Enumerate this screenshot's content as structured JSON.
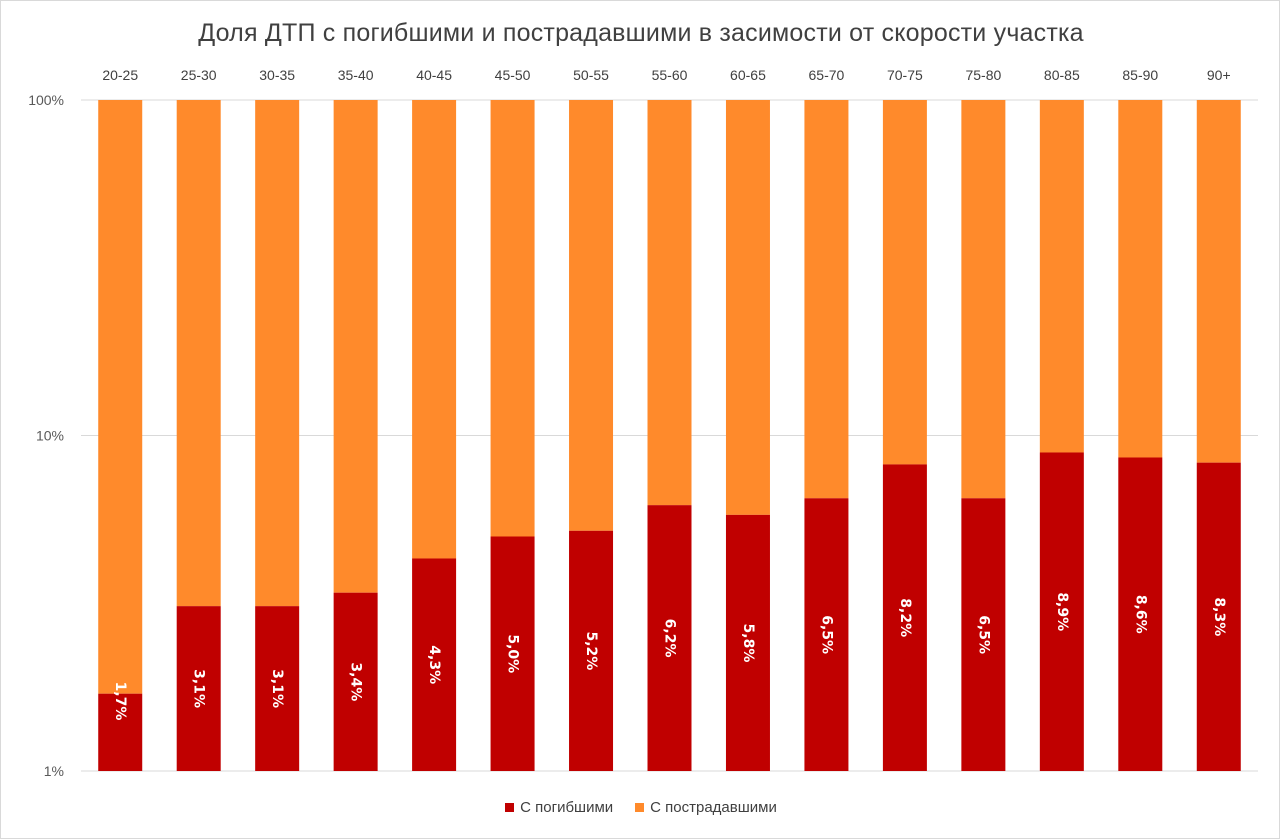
{
  "chart_data": {
    "type": "bar",
    "stacked": true,
    "percent_stacked": true,
    "title": "Доля ДТП с погибшими и пострадавшими в засимости от скорости участка",
    "xlabel": "",
    "ylabel": "",
    "y_scale": "log",
    "ylim": [
      1,
      100
    ],
    "y_ticks": [
      "1%",
      "10%",
      "100%"
    ],
    "categories": [
      "20-25",
      "25-30",
      "30-35",
      "35-40",
      "40-45",
      "45-50",
      "50-55",
      "55-60",
      "60-65",
      "65-70",
      "70-75",
      "75-80",
      "80-85",
      "85-90",
      "90+"
    ],
    "series": [
      {
        "name": "С погибшими",
        "color": "#c00000",
        "values": [
          1.7,
          3.1,
          3.1,
          3.4,
          4.3,
          5.0,
          5.2,
          6.2,
          5.8,
          6.5,
          8.2,
          6.5,
          8.9,
          8.6,
          8.3
        ],
        "data_labels": [
          "1,7%",
          "3,1%",
          "3,1%",
          "3,4%",
          "4,3%",
          "5,0%",
          "5,2%",
          "6,2%",
          "5,8%",
          "6,5%",
          "8,2%",
          "6,5%",
          "8,9%",
          "8,6%",
          "8,3%"
        ]
      },
      {
        "name": "С пострадавшими",
        "color": "#ff8a2b",
        "values": [
          98.3,
          96.9,
          96.9,
          96.6,
          95.7,
          95.0,
          94.8,
          93.8,
          94.2,
          93.5,
          91.8,
          93.5,
          91.1,
          91.4,
          91.7
        ]
      }
    ],
    "grid": true,
    "category_axis_position": "top",
    "legend_position": "bottom"
  }
}
